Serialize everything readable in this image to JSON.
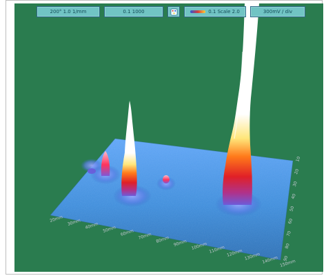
{
  "toolbar": {
    "buttons": [
      {
        "label": "200° 1.0 1/mm",
        "icon": ""
      },
      {
        "label": "0.1 1000",
        "icon": ""
      },
      {
        "label": "",
        "icon": "palette-icon"
      },
      {
        "label": "0.1 Scale 2.0",
        "icon": "color-scale-bar-icon"
      },
      {
        "label": "300mV / div",
        "icon": ""
      }
    ]
  },
  "axis": {
    "x_ticks": [
      "20mm",
      "30mm",
      "40mm",
      "50mm",
      "60mm",
      "70mm",
      "80mm",
      "90mm",
      "100mm",
      "110mm",
      "120mm",
      "130mm",
      "140mm",
      "150mm"
    ],
    "y_ticks": [
      "10",
      "20",
      "30",
      "40",
      "50",
      "60",
      "70",
      "80",
      "90"
    ]
  },
  "colors": {
    "background": "#2a7c4f",
    "surface_low": "#3c8ed6",
    "surface_mid": "#7fa7ff",
    "peak_low": "#c83a64",
    "peak_mid": "#ff3a1c",
    "peak_high": "#ffd54f",
    "peak_top": "#ffffff"
  }
}
